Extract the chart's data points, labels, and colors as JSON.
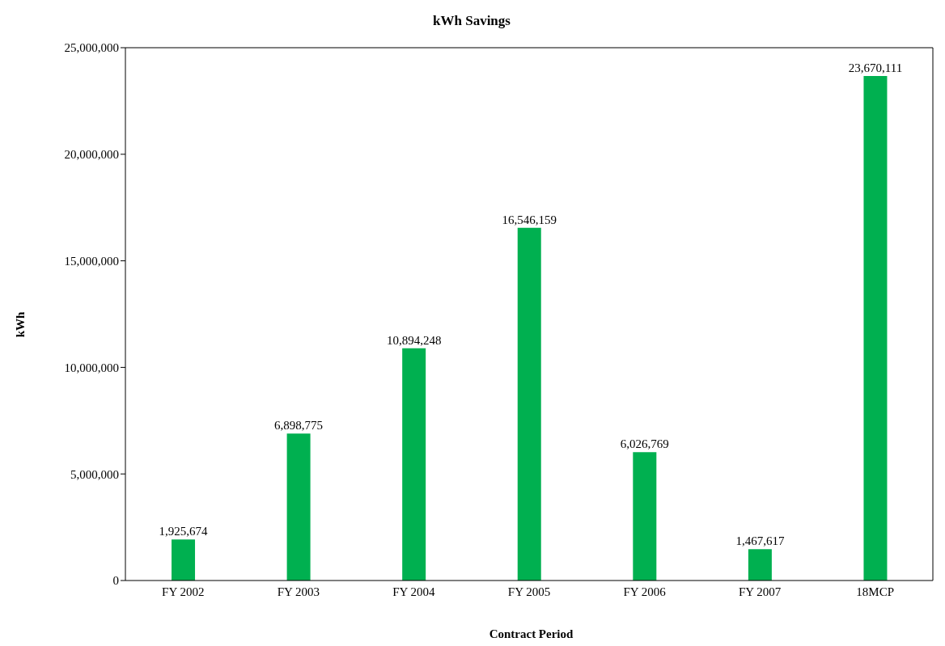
{
  "chart_data": {
    "type": "bar",
    "title": "kWh Savings",
    "xlabel": "Contract Period",
    "ylabel": "kWh",
    "categories": [
      "FY 2002",
      "FY 2003",
      "FY 2004",
      "FY 2005",
      "FY 2006",
      "FY 2007",
      "18MCP"
    ],
    "values": [
      1925674,
      6898775,
      10894248,
      16546159,
      6026769,
      1467617,
      23670111
    ],
    "value_labels": [
      "1,925,674",
      "6,898,775",
      "10,894,248",
      "16,546,159",
      "6,026,769",
      "1,467,617",
      "23,670,111"
    ],
    "color": "#00b050",
    "ylim": [
      0,
      25000000
    ],
    "yticks": [
      0,
      {
        "value": 5000000,
        "label": "5,000,000"
      },
      {
        "value": 10000000,
        "label": "10,000,000"
      },
      {
        "value": 15000000,
        "label": "15,000,000"
      },
      {
        "value": 20000000,
        "label": "20,000,000"
      },
      {
        "value": 25000000,
        "label": "25,000,000"
      }
    ],
    "grid": false
  }
}
